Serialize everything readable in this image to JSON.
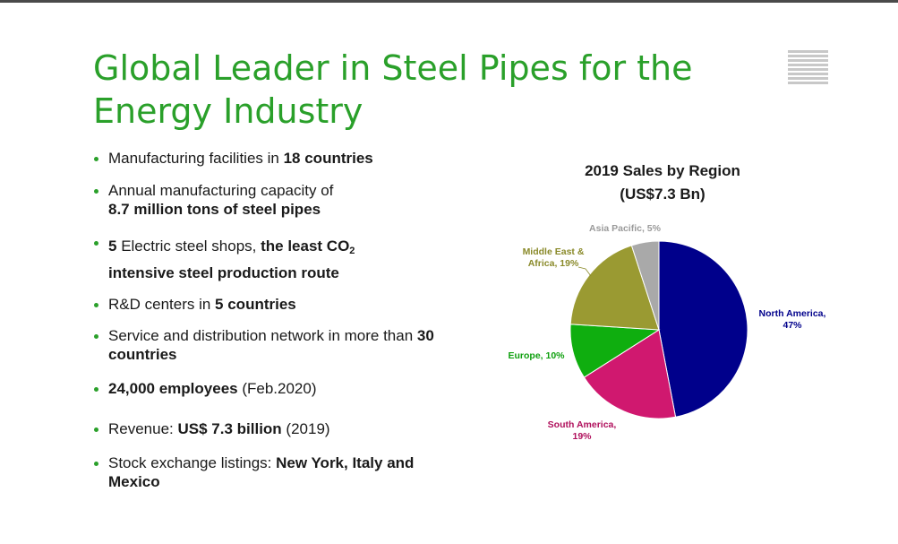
{
  "slide": {
    "title": "Global Leader in Steel Pipes for the Energy Industry",
    "bullets": [
      {
        "pre": "Manufacturing facilities in ",
        "bold": "18 countries"
      },
      {
        "pre": "Annual manufacturing capacity of",
        "bold": "8.7 million tons of steel pipes"
      },
      {
        "bold1": "5",
        "mid": " Electric steel shops, ",
        "bold2": "the least CO",
        "sub": "2",
        "bold3": "intensive steel production route"
      },
      {
        "pre": "R&D centers in ",
        "bold": "5 countries"
      },
      {
        "pre": "Service and distribution network in more than ",
        "bold": "30 countries"
      },
      {
        "bold": "24,000 employees",
        "post": " (Feb.2020)"
      },
      {
        "pre": "Revenue: ",
        "bold": "US$ 7.3 billion",
        "post": " (2019)"
      },
      {
        "pre": "Stock exchange listings: ",
        "bold": "New York, Italy and Mexico"
      }
    ]
  },
  "colors": {
    "title": "#2aa02a",
    "bullet": "#2aa02a"
  },
  "icons": {
    "menu": "hamburger-menu-icon"
  },
  "chart_data": {
    "type": "pie",
    "title": "2019 Sales by Region",
    "subtitle": "(US$7.3 Bn)",
    "slices": [
      {
        "label": "North America,",
        "label2": "47%",
        "value": 47,
        "color": "#00008b",
        "label_color": "#00008b"
      },
      {
        "label": "South America,",
        "label2": "19%",
        "value": 19,
        "color": "#d0186f",
        "label_color": "#b0105c"
      },
      {
        "label": "Europe, 10%",
        "label2": "",
        "value": 10,
        "color": "#0fae0f",
        "label_color": "#0fa00f"
      },
      {
        "label": "Middle East &",
        "label2": "Africa, 19%",
        "value": 19,
        "color": "#9a9a32",
        "label_color": "#8a8a2a"
      },
      {
        "label": "Asia Pacific, 5%",
        "label2": "",
        "value": 5,
        "color": "#a9a9a9",
        "label_color": "#9a9a9a"
      }
    ]
  }
}
